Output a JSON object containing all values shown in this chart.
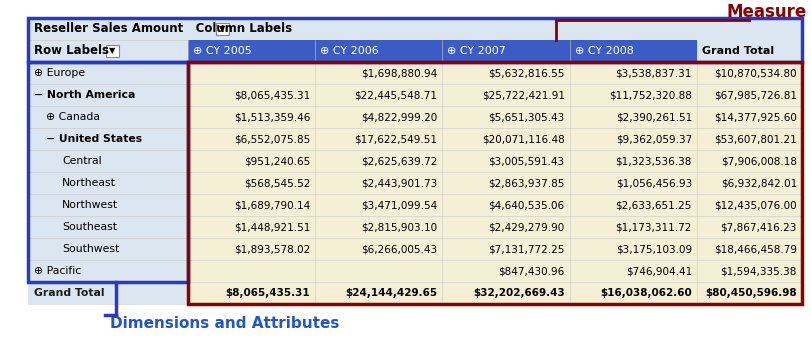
{
  "title_cell": "Reseller Sales Amount",
  "col_labels_text": "Column Labels",
  "col_labels_btn": "▼",
  "row_labels_text": "Row Labels",
  "row_labels_btn": "▼",
  "col_headers": [
    "⊕ CY 2005",
    "⊕ CY 2006",
    "⊕ CY 2007",
    "⊕ CY 2008",
    "Grand Total"
  ],
  "row_labels": [
    "⊕ Europe",
    "− North America",
    "  ⊕ Canada",
    "  − United States",
    "      Central",
    "      Northeast",
    "      Northwest",
    "      Southeast",
    "      Southwest",
    "⊕ Pacific",
    "Grand Total"
  ],
  "row_values": [
    [
      "",
      "$1,698,880.94",
      "$5,632,816.55",
      "$3,538,837.31",
      "$10,870,534.80"
    ],
    [
      "$8,065,435.31",
      "$22,445,548.71",
      "$25,722,421.91",
      "$11,752,320.88",
      "$67,985,726.81"
    ],
    [
      "$1,513,359.46",
      "$4,822,999.20",
      "$5,651,305.43",
      "$2,390,261.51",
      "$14,377,925.60"
    ],
    [
      "$6,552,075.85",
      "$17,622,549.51",
      "$20,071,116.48",
      "$9,362,059.37",
      "$53,607,801.21"
    ],
    [
      "$951,240.65",
      "$2,625,639.72",
      "$3,005,591.43",
      "$1,323,536.38",
      "$7,906,008.18"
    ],
    [
      "$568,545.52",
      "$2,443,901.73",
      "$2,863,937.85",
      "$1,056,456.93",
      "$6,932,842.01"
    ],
    [
      "$1,689,790.14",
      "$3,471,099.54",
      "$4,640,535.06",
      "$2,633,651.25",
      "$12,435,076.00"
    ],
    [
      "$1,448,921.51",
      "$2,815,903.10",
      "$2,429,279.90",
      "$1,173,311.72",
      "$7,867,416.23"
    ],
    [
      "$1,893,578.02",
      "$6,266,005.43",
      "$7,131,772.25",
      "$3,175,103.09",
      "$18,466,458.79"
    ],
    [
      "",
      "",
      "$847,430.96",
      "$746,904.41",
      "$1,594,335.38"
    ],
    [
      "$8,065,435.31",
      "$24,144,429.65",
      "$32,202,669.43",
      "$16,038,062.60",
      "$80,450,596.98"
    ]
  ],
  "row_indents": [
    0,
    0,
    12,
    12,
    28,
    28,
    28,
    28,
    28,
    0,
    0
  ],
  "row_bold": [
    false,
    true,
    false,
    true,
    false,
    false,
    false,
    false,
    false,
    false,
    true
  ],
  "header_bg": "#dce6f1",
  "data_bg_light": "#f5efd6",
  "border_blue": "#2a39c4",
  "border_dark_red": "#8b0000",
  "text_dark": "#1a1a2e",
  "measure_text": "Measure",
  "measure_color": "#8b0000",
  "dim_attr_text": "Dimensions and Attributes",
  "dim_attr_color": "#2255cc",
  "fig_w": 8.12,
  "fig_h": 3.41,
  "dpi": 100
}
